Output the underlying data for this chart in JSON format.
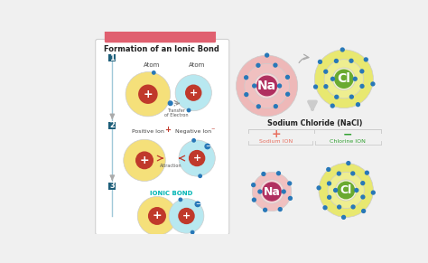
{
  "bg_color": "#f0f0f0",
  "left_panel_bg": "#ffffff",
  "left_panel_border": "#cccccc",
  "title": "Formation of an Ionic Bond",
  "title_color": "#222222",
  "step_bg": "#1e5f7a",
  "step_text": "#ffffff",
  "atom_yellow": "#f5e07a",
  "atom_blue": "#b8e8f0",
  "nucleus_color": "#c0392b",
  "nucleus_text": "#ffffff",
  "electron_color": "#1a6fa8",
  "arrow_color": "#bbbbbb",
  "label_color": "#444444",
  "transfer_color": "#555555",
  "attraction_color": "#c0392b",
  "ionic_bond_color": "#00b5b5",
  "na_core_color": "#b03060",
  "cl_core_color": "#6aaa30",
  "na_shell_color": "#f8d0d0",
  "cl_shell_color": "#f5f5c0",
  "na_label": "Na",
  "cl_label": "Cl",
  "sodium_chloride_title": "Sodium Chloride (NaCl)",
  "sodium_ion_label": "Sodium ION",
  "chlorine_ion_label": "Chlorine ION",
  "top_bar_color": "#e06070",
  "e_color": "#2878b8",
  "plus_color": "#c0392b",
  "minus_badge_color": "#2878b8"
}
